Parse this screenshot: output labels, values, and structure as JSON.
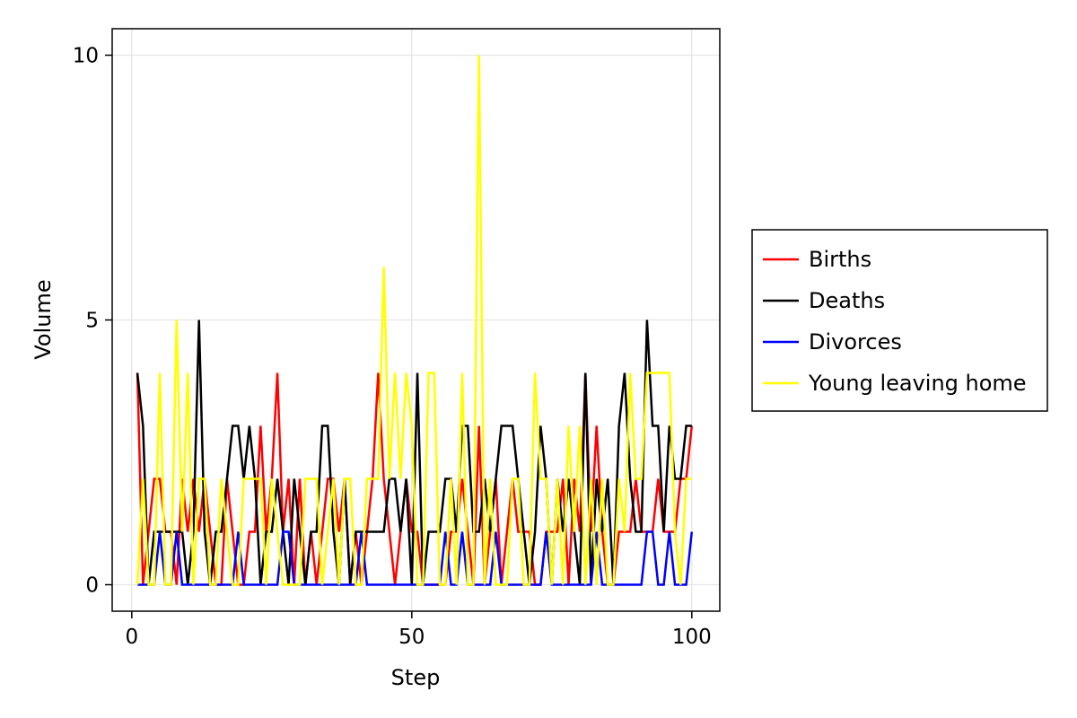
{
  "chart_data": {
    "type": "line",
    "xlabel": "Step",
    "ylabel": "Volume",
    "xlim": [
      -3.5,
      105
    ],
    "ylim": [
      -0.5,
      10.5
    ],
    "xticks": [
      0,
      50,
      100
    ],
    "xtick_labels": [
      "0",
      "50",
      "100"
    ],
    "yticks": [
      0,
      5,
      10
    ],
    "ytick_labels": [
      "0",
      "5",
      "10"
    ],
    "grid": true,
    "legend_position": "right",
    "series": [
      {
        "name": "Births",
        "color": "#ff0000",
        "x": [
          1,
          2,
          3,
          4,
          5,
          6,
          7,
          8,
          9,
          10,
          11,
          12,
          13,
          14,
          15,
          16,
          17,
          18,
          19,
          20,
          21,
          22,
          23,
          24,
          25,
          26,
          27,
          28,
          29,
          30,
          31,
          32,
          33,
          34,
          35,
          36,
          37,
          38,
          39,
          40,
          41,
          42,
          43,
          44,
          45,
          46,
          47,
          48,
          49,
          50,
          51,
          52,
          53,
          54,
          55,
          56,
          57,
          58,
          59,
          60,
          61,
          62,
          63,
          64,
          65,
          66,
          67,
          68,
          69,
          70,
          71,
          72,
          73,
          74,
          75,
          76,
          77,
          78,
          79,
          80,
          81,
          82,
          83,
          84,
          85,
          86,
          87,
          88,
          89,
          90,
          91,
          92,
          93,
          94,
          95,
          96,
          97,
          98,
          99,
          100
        ],
        "values": [
          4,
          0,
          1,
          2,
          2,
          1,
          1,
          0,
          2,
          1,
          2,
          1,
          2,
          1,
          0,
          0,
          2,
          1,
          0,
          0,
          1,
          1,
          3,
          1,
          2,
          4,
          1,
          2,
          0,
          2,
          0,
          1,
          0,
          1,
          2,
          2,
          1,
          2,
          0,
          1,
          0,
          1,
          2,
          4,
          2,
          1,
          0,
          1,
          2,
          1,
          1,
          0,
          0,
          0,
          0,
          0,
          1,
          1,
          2,
          1,
          0,
          3,
          0,
          1,
          2,
          0,
          1,
          2,
          1,
          1,
          1,
          0,
          0,
          1,
          1,
          1,
          2,
          0,
          2,
          1,
          4,
          1,
          3,
          1,
          0,
          0,
          1,
          1,
          1,
          2,
          1,
          1,
          1,
          2,
          1,
          1,
          1,
          2,
          2,
          3
        ]
      },
      {
        "name": "Deaths",
        "color": "#000000",
        "x": [
          1,
          2,
          3,
          4,
          5,
          6,
          7,
          8,
          9,
          10,
          11,
          12,
          13,
          14,
          15,
          16,
          17,
          18,
          19,
          20,
          21,
          22,
          23,
          24,
          25,
          26,
          27,
          28,
          29,
          30,
          31,
          32,
          33,
          34,
          35,
          36,
          37,
          38,
          39,
          40,
          41,
          42,
          43,
          44,
          45,
          46,
          47,
          48,
          49,
          50,
          51,
          52,
          53,
          54,
          55,
          56,
          57,
          58,
          59,
          60,
          61,
          62,
          63,
          64,
          65,
          66,
          67,
          68,
          69,
          70,
          71,
          72,
          73,
          74,
          75,
          76,
          77,
          78,
          79,
          80,
          81,
          82,
          83,
          84,
          85,
          86,
          87,
          88,
          89,
          90,
          91,
          92,
          93,
          94,
          95,
          96,
          97,
          98,
          99,
          100
        ],
        "values": [
          4,
          3,
          0,
          1,
          1,
          1,
          1,
          1,
          1,
          0,
          1,
          5,
          1,
          0,
          1,
          1,
          2,
          3,
          3,
          2,
          3,
          2,
          0,
          1,
          1,
          2,
          1,
          0,
          2,
          1,
          0,
          1,
          1,
          3,
          3,
          1,
          0,
          2,
          0,
          1,
          1,
          1,
          1,
          1,
          1,
          2,
          2,
          1,
          2,
          0,
          4,
          0,
          1,
          1,
          1,
          2,
          2,
          1,
          3,
          3,
          1,
          1,
          2,
          1,
          2,
          3,
          3,
          3,
          2,
          1,
          0,
          1,
          3,
          2,
          0,
          2,
          1,
          2,
          1,
          0,
          4,
          0,
          2,
          1,
          2,
          0,
          3,
          4,
          2,
          1,
          1,
          5,
          3,
          3,
          1,
          3,
          2,
          2,
          3,
          3
        ]
      },
      {
        "name": "Divorces",
        "color": "#0000ff",
        "x": [
          1,
          2,
          3,
          4,
          5,
          6,
          7,
          8,
          9,
          10,
          11,
          12,
          13,
          14,
          15,
          16,
          17,
          18,
          19,
          20,
          21,
          22,
          23,
          24,
          25,
          26,
          27,
          28,
          29,
          30,
          31,
          32,
          33,
          34,
          35,
          36,
          37,
          38,
          39,
          40,
          41,
          42,
          43,
          44,
          45,
          46,
          47,
          48,
          49,
          50,
          51,
          52,
          53,
          54,
          55,
          56,
          57,
          58,
          59,
          60,
          61,
          62,
          63,
          64,
          65,
          66,
          67,
          68,
          69,
          70,
          71,
          72,
          73,
          74,
          75,
          76,
          77,
          78,
          79,
          80,
          81,
          82,
          83,
          84,
          85,
          86,
          87,
          88,
          89,
          90,
          91,
          92,
          93,
          94,
          95,
          96,
          97,
          98,
          99,
          100
        ],
        "values": [
          0,
          0,
          0,
          0,
          1,
          0,
          0,
          1,
          0,
          0,
          0,
          0,
          0,
          0,
          0,
          0,
          0,
          0,
          1,
          0,
          0,
          0,
          0,
          0,
          0,
          0,
          1,
          1,
          0,
          0,
          0,
          0,
          0,
          0,
          0,
          0,
          0,
          0,
          0,
          0,
          1,
          0,
          0,
          0,
          0,
          0,
          0,
          0,
          0,
          0,
          0,
          0,
          0,
          0,
          0,
          1,
          0,
          0,
          1,
          0,
          0,
          0,
          0,
          0,
          1,
          0,
          0,
          0,
          0,
          0,
          0,
          0,
          0,
          1,
          0,
          0,
          0,
          0,
          0,
          0,
          0,
          0,
          1,
          0,
          0,
          0,
          0,
          0,
          0,
          0,
          0,
          1,
          1,
          0,
          0,
          1,
          0,
          0,
          0,
          1
        ]
      },
      {
        "name": "Young leaving home",
        "color": "#ffff00",
        "x": [
          1,
          2,
          3,
          4,
          5,
          6,
          7,
          8,
          9,
          10,
          11,
          12,
          13,
          14,
          15,
          16,
          17,
          18,
          19,
          20,
          21,
          22,
          23,
          24,
          25,
          26,
          27,
          28,
          29,
          30,
          31,
          32,
          33,
          34,
          35,
          36,
          37,
          38,
          39,
          40,
          41,
          42,
          43,
          44,
          45,
          46,
          47,
          48,
          49,
          50,
          51,
          52,
          53,
          54,
          55,
          56,
          57,
          58,
          59,
          60,
          61,
          62,
          63,
          64,
          65,
          66,
          67,
          68,
          69,
          70,
          71,
          72,
          73,
          74,
          75,
          76,
          77,
          78,
          79,
          80,
          81,
          82,
          83,
          84,
          85,
          86,
          87,
          88,
          89,
          90,
          91,
          92,
          93,
          94,
          95,
          96,
          97,
          98,
          99,
          100
        ],
        "values": [
          0,
          2,
          0,
          0,
          4,
          0,
          0,
          5,
          1,
          4,
          0,
          2,
          2,
          0,
          0,
          2,
          1,
          0,
          0,
          2,
          2,
          2,
          2,
          0,
          2,
          1,
          0,
          0,
          0,
          0,
          2,
          2,
          2,
          0,
          1,
          2,
          0,
          2,
          2,
          0,
          0,
          2,
          2,
          2,
          6,
          2,
          4,
          2,
          4,
          3,
          0,
          0,
          4,
          4,
          0,
          0,
          2,
          0,
          4,
          0,
          0,
          10,
          0,
          2,
          0,
          0,
          0,
          2,
          2,
          0,
          0,
          4,
          2,
          2,
          0,
          2,
          0,
          3,
          1,
          3,
          0,
          2,
          0,
          2,
          0,
          0,
          2,
          1,
          4,
          2,
          2,
          4,
          4,
          4,
          4,
          4,
          1,
          0,
          2,
          2
        ]
      }
    ]
  }
}
